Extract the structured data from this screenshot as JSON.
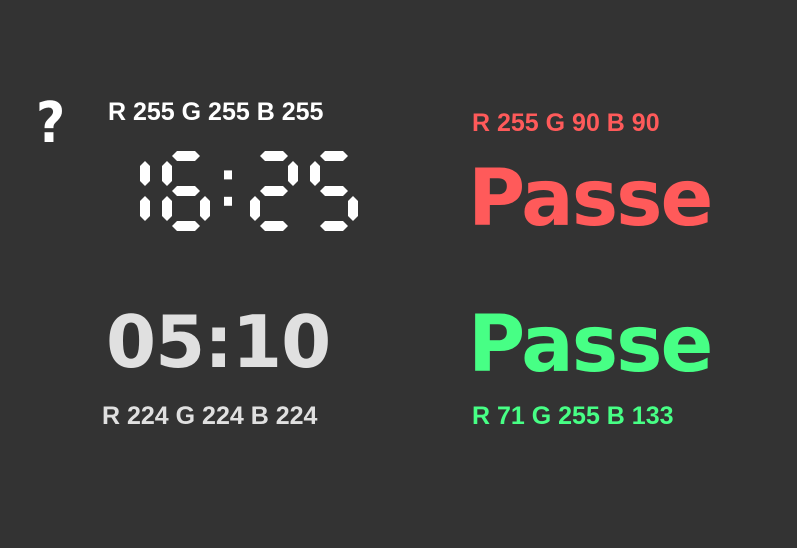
{
  "help_icon": {
    "glyph": "?",
    "icon": "question-mark-icon",
    "color": "#ffffff"
  },
  "samples": [
    {
      "id": "white",
      "rgb_label": "R 255 G 255 B 255",
      "display_text": "16:25",
      "style": "seven-segment",
      "color": "#ffffff"
    },
    {
      "id": "gray",
      "rgb_label": "R 224 G 224 B 224",
      "display_text": "05:10",
      "style": "plain",
      "color": "#e0e0e0"
    },
    {
      "id": "red",
      "rgb_label": "R 255  G 90 B 90",
      "display_text": "Passe",
      "style": "plain",
      "color": "#ff5a5a"
    },
    {
      "id": "green",
      "rgb_label": "R 71 G 255 B 133",
      "display_text": "Passe",
      "style": "plain",
      "color": "#47ff85"
    }
  ]
}
